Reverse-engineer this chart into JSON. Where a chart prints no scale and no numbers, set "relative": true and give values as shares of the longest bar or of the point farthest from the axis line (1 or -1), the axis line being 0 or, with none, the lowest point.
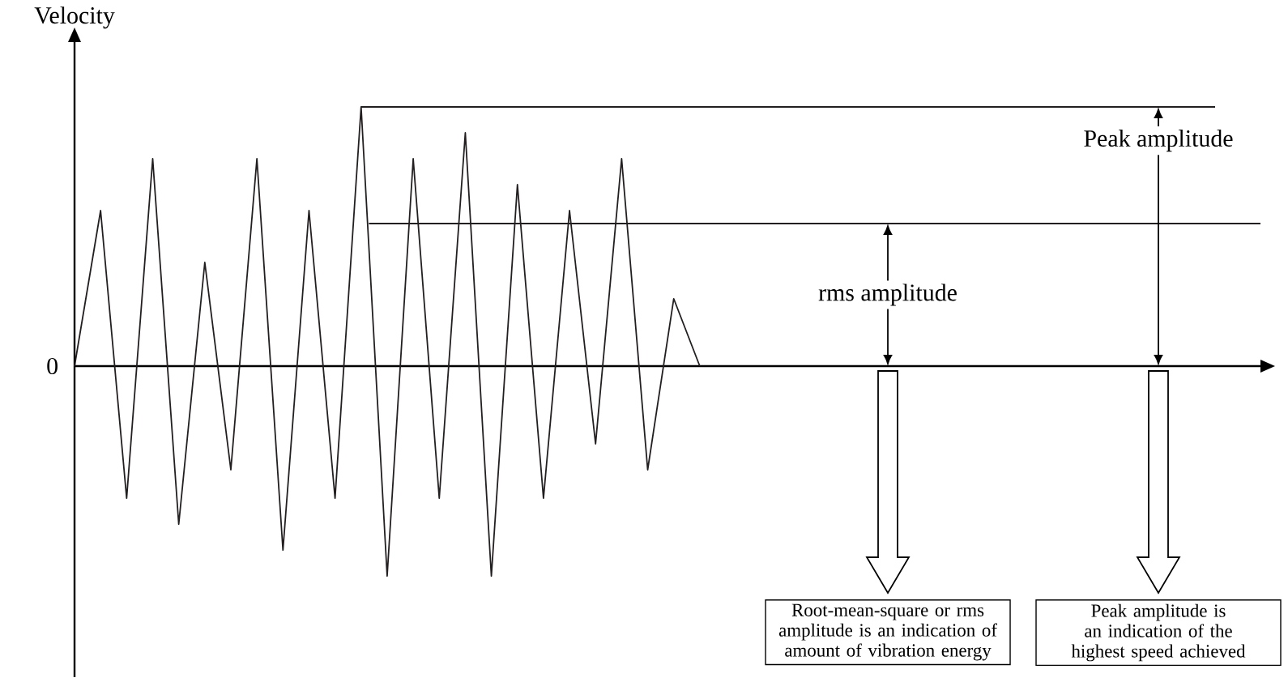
{
  "chart_data": {
    "type": "line",
    "relative": true,
    "ylabel": "Velocity",
    "categories": [
      null,
      null,
      null,
      null,
      null,
      null,
      null,
      null,
      null,
      null,
      null,
      null,
      null,
      null,
      null,
      null,
      null,
      null,
      null,
      null,
      null,
      null,
      null,
      null,
      null
    ],
    "series": [
      {
        "color": "#231f20",
        "values": [
          0,
          0.6,
          -0.51,
          0.8,
          -0.61,
          0.4,
          -0.4,
          0.8,
          -0.71,
          0.6,
          -0.51,
          1.0,
          -0.81,
          0.8,
          -0.51,
          0.9,
          -0.81,
          0.7,
          -0.51,
          0.6,
          -0.3,
          0.8,
          -0.4,
          0.26,
          0
        ]
      }
    ],
    "ref_lines": [
      {
        "axis": "y",
        "value": 0.55,
        "label": "rms amplitude"
      },
      {
        "axis": "y",
        "value": 1.0,
        "label": "Peak amplitude"
      }
    ],
    "annotations": [
      "0",
      "Root-mean-square or rms amplitude is an indication of amount of vibration energy",
      "Peak amplitude is an indication of the highest speed achieved"
    ],
    "marker": "none",
    "line_style": "solid"
  }
}
